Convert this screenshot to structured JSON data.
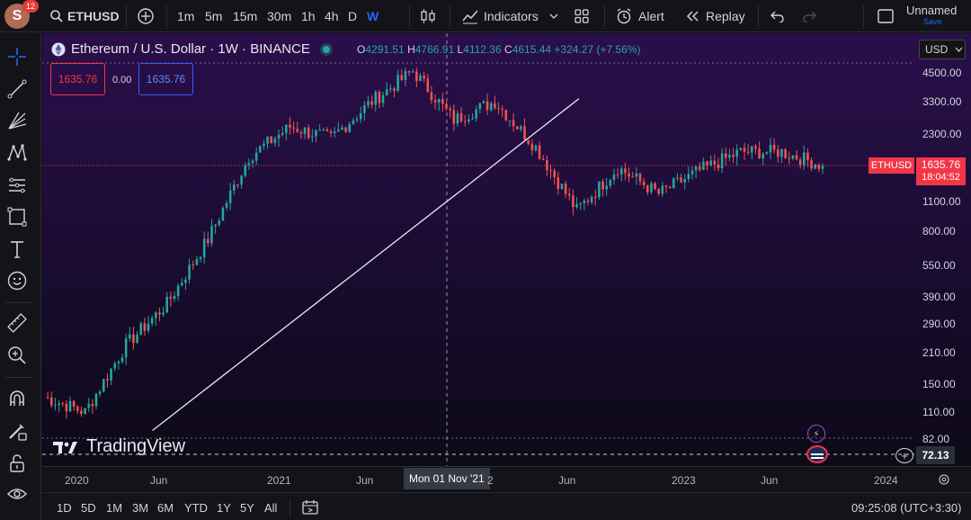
{
  "header": {
    "avatar_letter": "S",
    "notification_count": "12",
    "symbol": "ETHUSD",
    "intervals": [
      "1m",
      "5m",
      "15m",
      "30m",
      "1h",
      "4h",
      "D",
      "W"
    ],
    "active_interval": "W",
    "indicators_label": "Indicators",
    "alert_label": "Alert",
    "replay_label": "Replay",
    "layout_name": "Unnamed",
    "save_label": "Save"
  },
  "legend": {
    "title": "Ethereum / U.S. Dollar · 1W · BINANCE",
    "open_label": "O",
    "open": "4291.51",
    "high_label": "H",
    "high": "4766.91",
    "low_label": "L",
    "low": "4112.36",
    "close_label": "C",
    "close": "4615.44",
    "change": "+324.27 (+7.56%)",
    "sell_price": "1635.76",
    "spread": "0.00",
    "buy_price": "1635.76"
  },
  "currency": "USD",
  "price_axis": {
    "ticks": [
      "4500.00",
      "3300.00",
      "2300.00",
      "1100.00",
      "800.00",
      "550.00",
      "390.00",
      "290.00",
      "210.00",
      "150.00",
      "110.00",
      "82.00"
    ],
    "symbol_tag": "ETHUSD",
    "last_price": "1635.76",
    "countdown": "18:04:52",
    "indicator_value": "72.13"
  },
  "time_axis": {
    "labels": [
      "2020",
      "Jun",
      "2021",
      "Jun",
      "2",
      "Jun",
      "2023",
      "Jun",
      "2024"
    ],
    "crosshair_label": "Mon 01 Nov '21"
  },
  "watermark": "TradingView",
  "bottom": {
    "ranges": [
      "1D",
      "5D",
      "1M",
      "3M",
      "6M",
      "YTD",
      "1Y",
      "5Y",
      "All"
    ],
    "clock": "09:25:08 (UTC+3:30)"
  },
  "colors": {
    "up": "#26a69a",
    "down": "#ef5350",
    "accent": "#2962ff",
    "price_line": "#f23645"
  },
  "chart_data": {
    "type": "candlestick",
    "symbol": "ETHUSD",
    "interval": "1W",
    "exchange": "BINANCE",
    "y_scale": "log",
    "ylim": [
      82,
      4600
    ],
    "x": [
      "2019-12",
      "2020-03",
      "2020-06",
      "2020-09",
      "2020-12",
      "2021-03",
      "2021-05",
      "2021-07",
      "2021-09",
      "2021-11",
      "2022-01",
      "2022-03",
      "2022-05",
      "2022-06",
      "2022-08",
      "2022-11",
      "2023-01",
      "2023-04",
      "2023-07",
      "2023-09"
    ],
    "close_approx": [
      130,
      110,
      230,
      360,
      730,
      1800,
      2500,
      2200,
      3300,
      4600,
      2700,
      3300,
      2000,
      1000,
      1600,
      1200,
      1550,
      1900,
      1900,
      1635.76
    ],
    "trendline": {
      "from": {
        "date": "2020-03",
        "price": 90
      },
      "to": {
        "date": "2022-05",
        "price": 3400
      }
    },
    "last_price": 1635.76
  }
}
